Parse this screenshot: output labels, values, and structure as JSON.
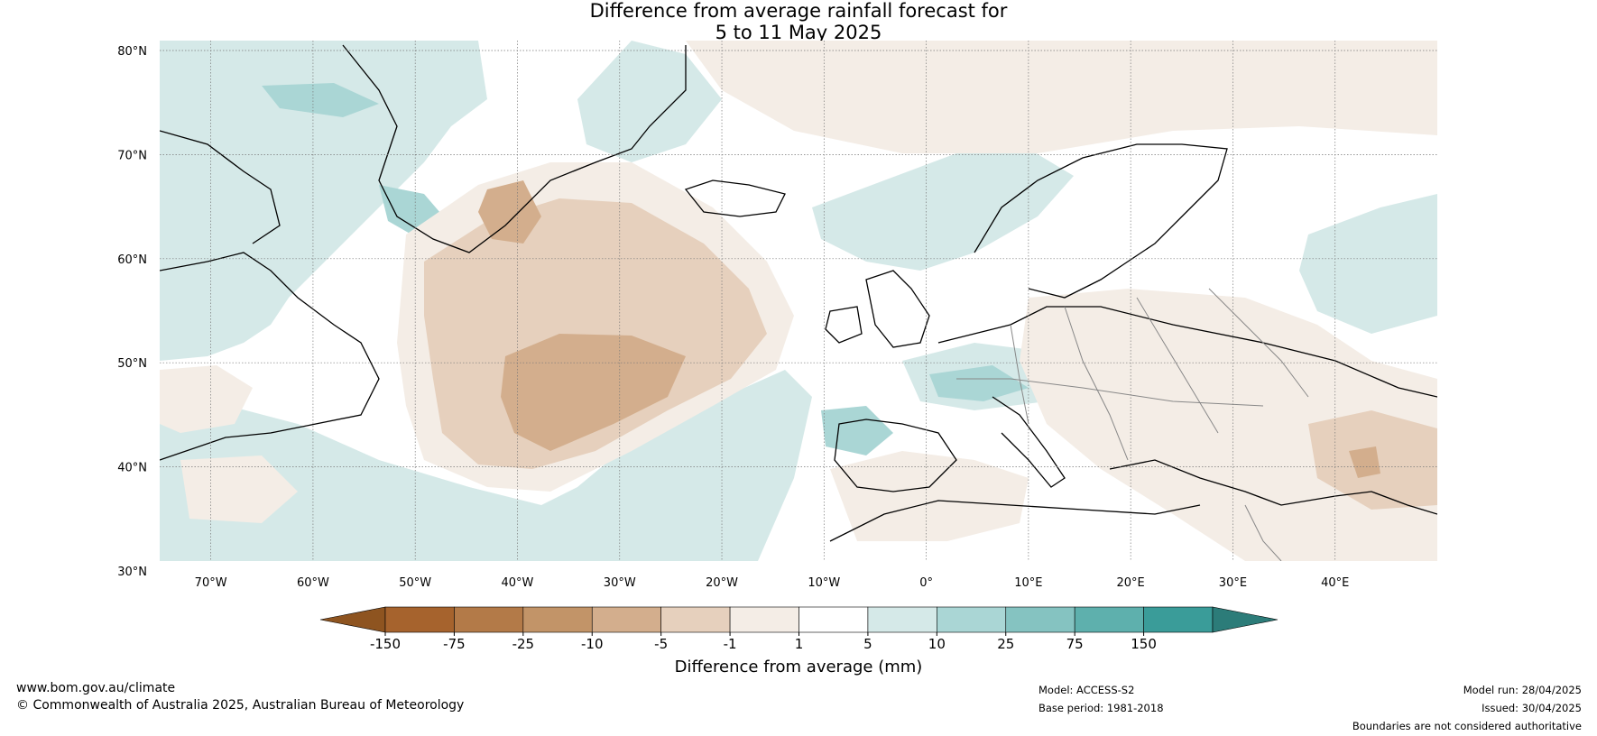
{
  "title": {
    "line1": "Difference from average rainfall forecast for",
    "line2": "5 to 11 May 2025"
  },
  "map": {
    "lat_labels": [
      "80°N",
      "70°N",
      "60°N",
      "50°N",
      "40°N",
      "30°N"
    ],
    "lon_labels": [
      "70°W",
      "60°W",
      "50°W",
      "40°W",
      "30°W",
      "20°W",
      "10°W",
      "0°",
      "10°E",
      "20°E",
      "30°E",
      "40°E"
    ],
    "lat_range": [
      30,
      80
    ],
    "lon_range": [
      -75,
      50
    ],
    "land_regions": [
      "Greenland",
      "Canada",
      "Iceland",
      "Europe",
      "North Africa",
      "Middle East"
    ],
    "anomaly_regions": [
      {
        "region": "central North Atlantic",
        "category": "-25 to -10"
      },
      {
        "region": "south of Greenland",
        "category": "-25 to -10"
      },
      {
        "region": "Labrador Sea and west Greenland",
        "category": "1 to 5"
      },
      {
        "region": "northwest Europe",
        "category": "1 to 5"
      },
      {
        "region": "western Mediterranean",
        "category": "5 to 10"
      },
      {
        "region": "eastern Europe",
        "category": "-5 to -1"
      },
      {
        "region": "Turkey / Caucasus",
        "category": "-10 to -5"
      }
    ]
  },
  "colorbar": {
    "colors": [
      "#a6632d",
      "#b37a48",
      "#c29468",
      "#d3ae8d",
      "#e6d0bd",
      "#f4ede6",
      "#ffffff",
      "#d5e9e8",
      "#aad6d5",
      "#85c3c1",
      "#5eb0ad",
      "#3a9c99"
    ],
    "extend_low_color": "#8e5420",
    "extend_high_color": "#2c7c79",
    "tick_labels": [
      "-150",
      "-75",
      "-25",
      "-10",
      "-5",
      "-1",
      "1",
      "5",
      "10",
      "25",
      "75",
      "150"
    ],
    "label": "Difference from average (mm)"
  },
  "footer": {
    "website": "www.bom.gov.au/climate",
    "copyright": "© Commonwealth of Australia 2025, Australian Bureau of Meteorology",
    "model": "Model: ACCESS-S2",
    "base_period": "Base period: 1981-2018",
    "model_run": "Model run: 28/04/2025",
    "issued": "Issued: 30/04/2025",
    "disclaimer": "Boundaries are not considered authoritative"
  }
}
